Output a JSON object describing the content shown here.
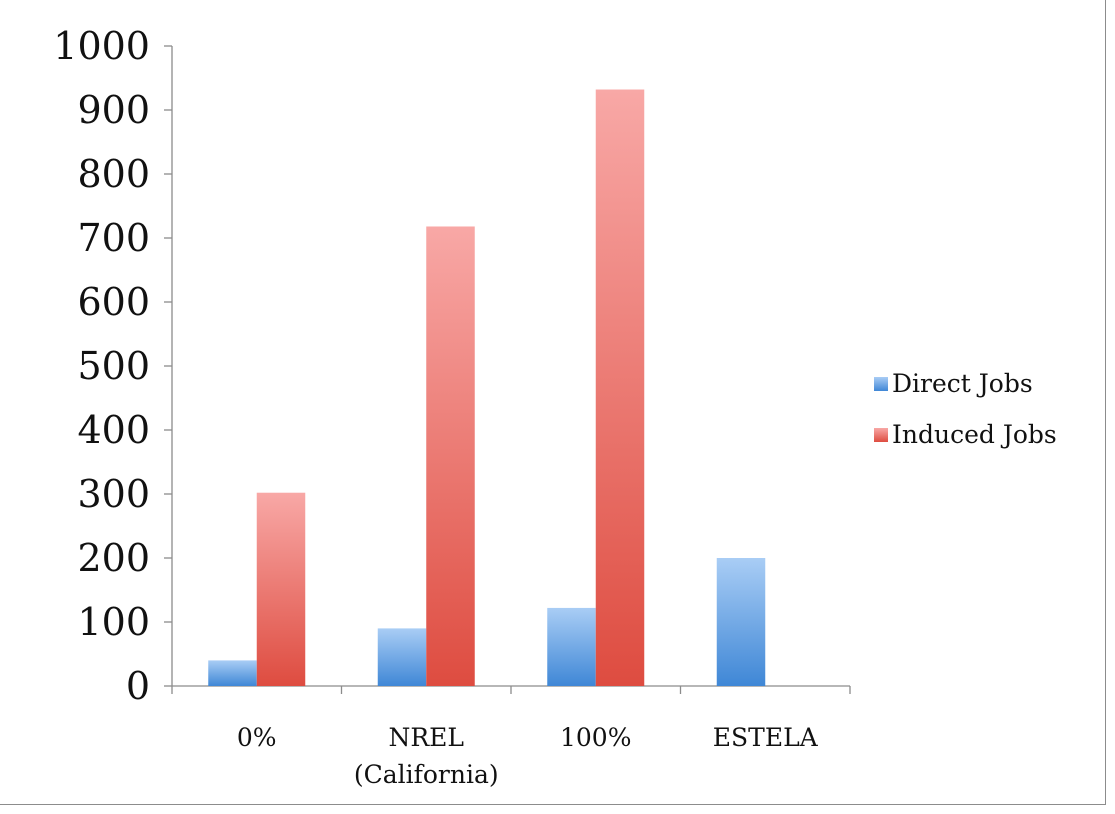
{
  "chart_data": {
    "type": "bar",
    "title": "",
    "xlabel": "",
    "ylabel": "",
    "categories": [
      [
        "0%"
      ],
      [
        "NREL",
        "(California)"
      ],
      [
        "100%"
      ],
      [
        "ESTELA"
      ]
    ],
    "series": [
      {
        "name": "Direct Jobs",
        "values": [
          40,
          90,
          122,
          200
        ],
        "color": "#5b9bd5"
      },
      {
        "name": "Induced Jobs",
        "values": [
          302,
          718,
          932,
          0
        ],
        "color": "#e0554a"
      }
    ],
    "ylim": [
      0,
      1000
    ],
    "yticks": [
      0,
      100,
      200,
      300,
      400,
      500,
      600,
      700,
      800,
      900,
      1000
    ],
    "grid": false,
    "legend_position": "right"
  }
}
